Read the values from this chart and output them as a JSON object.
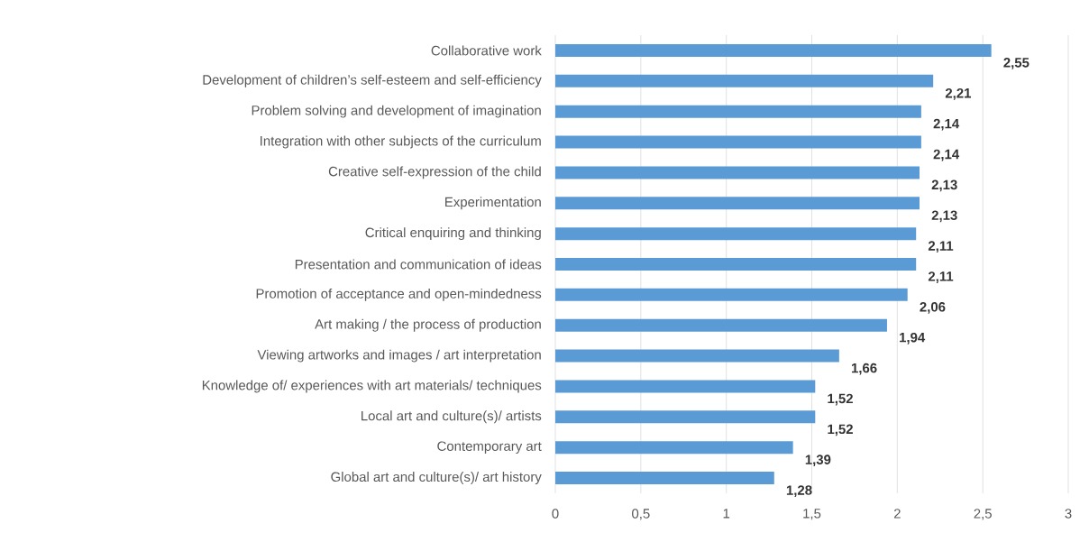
{
  "chart_data": {
    "type": "bar",
    "orientation": "horizontal",
    "color": "#5b9bd5",
    "grid": "x",
    "categories": [
      "Collaborative work",
      "Development of children’s self-esteem and self-efficiency",
      "Problem solving and development of imagination",
      "Integration with other subjects of the curriculum",
      "Creative self-expression of the child",
      "Experimentation",
      "Critical enquiring and thinking",
      "Presentation and communication of ideas",
      "Promotion of acceptance  and open-mindedness",
      "Art making / the process of production",
      "Viewing artworks and images / art interpretation",
      "Knowledge of/ experiences with art materials/ techniques",
      "Local art and culture(s)/ artists",
      "Contemporary art",
      "Global art and culture(s)/ art history"
    ],
    "values": [
      2.55,
      2.21,
      2.14,
      2.14,
      2.13,
      2.13,
      2.11,
      2.11,
      2.06,
      1.94,
      1.66,
      1.52,
      1.52,
      1.39,
      1.28
    ],
    "value_labels": [
      "2,55",
      "2,21",
      "2,14",
      "2,14",
      "2,13",
      "2,13",
      "2,11",
      "2,11",
      "2,06",
      "1,94",
      "1,66",
      "1,52",
      "1,52",
      "1,39",
      "1,28"
    ],
    "xlim": [
      0,
      3
    ],
    "xticks": [
      0,
      {
        "value": 0.5,
        "label": "0,5"
      },
      1,
      {
        "value": 1.5,
        "label": "1,5"
      },
      2,
      {
        "value": 2.5,
        "label": "2,5"
      },
      3
    ]
  }
}
